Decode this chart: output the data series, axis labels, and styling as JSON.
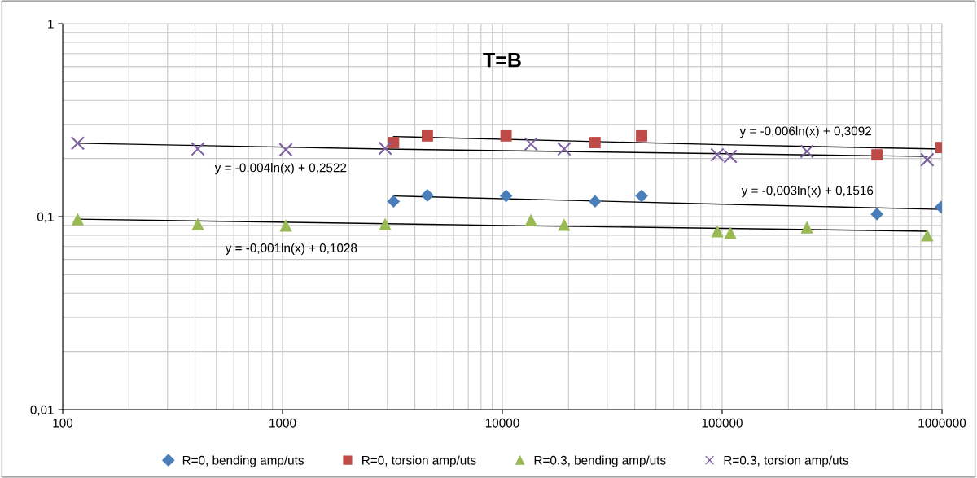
{
  "chart_data": {
    "type": "scatter",
    "title": "T=B",
    "log": "xy",
    "grid": true,
    "legend": "bottom",
    "xlim": [
      100,
      1000000
    ],
    "ylim": [
      0.01,
      1
    ],
    "xticks": [
      100,
      1000,
      10000,
      100000,
      1000000
    ],
    "yticks": [
      {
        "value": 0.01,
        "label": "0,01"
      },
      {
        "value": 0.1,
        "label": "0,1"
      },
      1
    ],
    "series": [
      {
        "name": "R=0, bending amp/uts",
        "color": "#4a7ebb",
        "marker": "diamond",
        "x": [
          3200,
          4560,
          10400,
          26400,
          43000,
          506000,
          990000
        ],
        "values": [
          0.12,
          0.129,
          0.128,
          0.12,
          0.128,
          0.103,
          0.112
        ]
      },
      {
        "name": "R=0, torsion amp/uts",
        "color": "#be4b48",
        "marker": "square",
        "x": [
          3200,
          4560,
          10400,
          26400,
          43000,
          506000,
          990000
        ],
        "values": [
          0.242,
          0.262,
          0.262,
          0.242,
          0.262,
          0.209,
          0.228
        ]
      },
      {
        "name": "R=0.3, bending amp/uts",
        "color": "#98b954",
        "marker": "triangle",
        "x": [
          117,
          412,
          1035,
          2930,
          13500,
          19100,
          95000,
          109000,
          243000,
          857000
        ],
        "values": [
          0.097,
          0.0916,
          0.09,
          0.0916,
          0.096,
          0.0908,
          0.084,
          0.0824,
          0.088,
          0.08
        ]
      },
      {
        "name": "R=0.3, torsion amp/uts",
        "color": "#7d60a0",
        "marker": "cross",
        "x": [
          117,
          412,
          1035,
          2930,
          13500,
          19100,
          95000,
          109000,
          243000,
          857000
        ],
        "values": [
          0.24,
          0.224,
          0.222,
          0.226,
          0.238,
          0.224,
          0.209,
          0.205,
          0.218,
          0.197
        ]
      },
      {
        "type": "line",
        "color": "#000000",
        "marker": "none",
        "x": [
          3200,
          100000,
          990000
        ],
        "values": [
          0.128,
          0.116,
          0.109
        ]
      },
      {
        "type": "line",
        "color": "#000000",
        "marker": "none",
        "x": [
          3200,
          100000,
          990000
        ],
        "values": [
          0.26,
          0.236,
          0.224
        ]
      },
      {
        "type": "line",
        "color": "#000000",
        "marker": "none",
        "x": [
          117,
          10000,
          857000
        ],
        "values": [
          0.097,
          0.09,
          0.084
        ]
      },
      {
        "type": "line",
        "color": "#000000",
        "marker": "none",
        "x": [
          117,
          2930,
          857000
        ],
        "values": [
          0.24,
          0.224,
          0.205
        ]
      }
    ],
    "annotations": [
      "y = -0,003ln(x) + 0,1516",
      "y = -0,006ln(x) + 0,3092",
      "y = -0,001ln(x) + 0,1028",
      "y = -0,004ln(x) + 0,2522"
    ]
  }
}
